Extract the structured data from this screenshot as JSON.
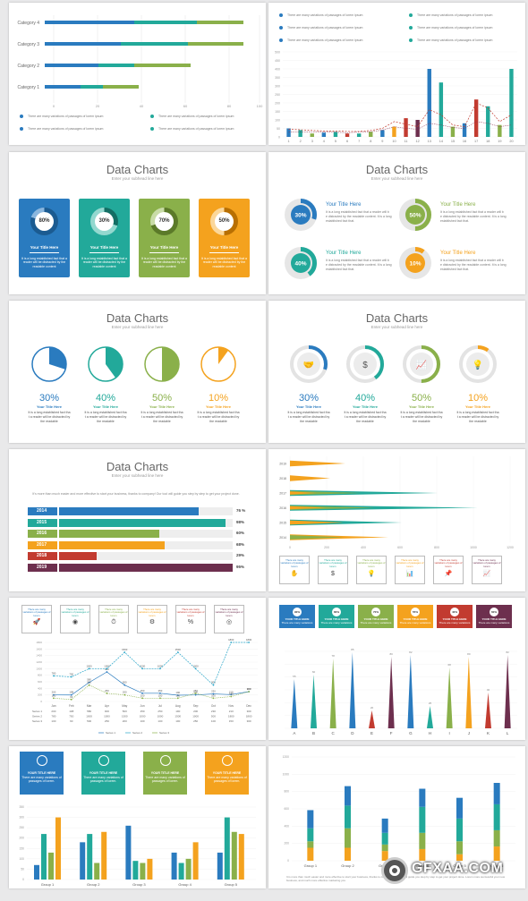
{
  "header_title": "Data Charts",
  "header_sub": "Enter your subhead line here",
  "slide1": {
    "categories": [
      "Category 4",
      "Category 3",
      "Category 2",
      "Category 1"
    ],
    "ticks": [
      "0",
      "20",
      "40",
      "60",
      "80",
      "100",
      "120"
    ],
    "legend": [
      "There are many variations of passages of lorem ipsum",
      "There are many variations of passages of lorem ipsum",
      "There are many variations of passages of lorem ipsum",
      "There are many variations of passages of lorem ipsum"
    ]
  },
  "slide2": {
    "legend": [
      "There are many variations of passages of lorem ipsum",
      "There are many variations of passages of lorem ipsum",
      "There are many variations of passages of lorem ipsum",
      "There are many variations of passages of lorem ipsum",
      "There are many variations of passages of lorem ipsum",
      "There are many variations of passages of lorem ipsum"
    ],
    "yticks": [
      "0",
      "50",
      "100",
      "150",
      "200",
      "250",
      "300",
      "350",
      "400",
      "450",
      "500"
    ],
    "xticks": [
      "1",
      "2",
      "3",
      "4",
      "5",
      "6",
      "7",
      "8",
      "9",
      "10",
      "11",
      "12",
      "13",
      "14",
      "15",
      "16",
      "17",
      "18",
      "19",
      "20"
    ]
  },
  "slide3": {
    "cards": [
      {
        "pct": "80%",
        "title": "Your Title Here",
        "body": "It is a long established fact that a reader will be distracted by the readable content"
      },
      {
        "pct": "30%",
        "title": "Your Title Here",
        "body": "It is a long established fact that a reader will be distracted by the readable content"
      },
      {
        "pct": "70%",
        "title": "Your Title Here",
        "body": "It is a long established fact that a reader will be distracted by the readable content"
      },
      {
        "pct": "50%",
        "title": "Your Title Here",
        "body": "It is a long established fact that a reader will be distracted by the readable content"
      }
    ]
  },
  "slide4": {
    "items": [
      {
        "pct": "30%",
        "title": "Your Title Here",
        "body": "It is a long established fact that a reader will be distracted by the readable content. It is a long established fact that."
      },
      {
        "pct": "50%",
        "title": "Your Title Here",
        "body": "It is a long established fact that a reader will be distracted by the readable content. It is a long established fact that."
      },
      {
        "pct": "40%",
        "title": "Your Title Here",
        "body": "It is a long established fact that a reader will be distracted by the readable content. It is a long established fact that."
      },
      {
        "pct": "10%",
        "title": "Your Title Here",
        "body": "It is a long established fact that a reader will be distracted by the readable content. It is a long established fact that."
      }
    ]
  },
  "slide5": {
    "items": [
      {
        "pct": "30%",
        "title": "Your Title Here",
        "body": "It is a long established fact that a reader will be distracted by the readable"
      },
      {
        "pct": "40%",
        "title": "Your Title Here",
        "body": "It is a long established fact that a reader will be distracted by the readable"
      },
      {
        "pct": "50%",
        "title": "Your Title Here",
        "body": "It is a long established fact that a reader will be distracted by the readable"
      },
      {
        "pct": "10%",
        "title": "Your Title Here",
        "body": "It is a long established fact that a reader will be distracted by the readable"
      }
    ]
  },
  "slide6": {
    "items": [
      {
        "pct": "30%",
        "title": "Your Title Here",
        "body": "It is a long established fact that a reader will be distracted by the readable"
      },
      {
        "pct": "40%",
        "title": "Your Title Here",
        "body": "It is a long established fact that a reader will be distracted by the readable"
      },
      {
        "pct": "50%",
        "title": "Your Title Here",
        "body": "It is a long established fact that a reader will be distracted by the readable"
      },
      {
        "pct": "10%",
        "title": "Your Title Here",
        "body": "It is a long established fact that a reader will be distracted by the readable"
      }
    ]
  },
  "slide7": {
    "intro": "It's more than much easier and more effective to start your business, thanks to company! Our tool will guide you step by step to get your project done.",
    "rows": [
      {
        "year": "2014",
        "pct": "76 %"
      },
      {
        "year": "2015",
        "pct": "98%"
      },
      {
        "year": "2016",
        "pct": "60%"
      },
      {
        "year": "2017",
        "pct": "68%"
      },
      {
        "year": "2018",
        "pct": "29%"
      },
      {
        "year": "2019",
        "pct": "95%"
      }
    ]
  },
  "slide8": {
    "years": [
      "2019",
      "2018",
      "2017",
      "2016",
      "2015",
      "2014"
    ],
    "xticks": [
      "0",
      "200",
      "400",
      "600",
      "800",
      "1000",
      "1200"
    ],
    "boxes": [
      "There are many variations of passages of lorem",
      "There are many variations of passages of lorem",
      "There are many variations of passages of lorem",
      "There are many variations of passages of lorem",
      "There are many variations of passages of lorem",
      "There are many variations of passages of lorem"
    ]
  },
  "slide9": {
    "boxes": [
      "There are many variations of passages of lorem",
      "There are many variations of passages of lorem",
      "There are many variations of passages of lorem",
      "There are many variations of passages of lorem",
      "There are many variations of passages of lorem",
      "There are many variations of passages of lorem"
    ],
    "months": [
      "Jan",
      "Feb",
      "Mar",
      "Apr",
      "May",
      "Jun",
      "Jul",
      "Aug",
      "Sep",
      "Oct",
      "Nov",
      "Dec"
    ],
    "rows": [
      {
        "name": "Series 1",
        "values": [
          "200",
          "198",
          "580",
          "900",
          "500",
          "250",
          "250",
          "190",
          "200",
          "230",
          "210",
          "300"
        ]
      },
      {
        "name": "Series 2",
        "values": [
          "780",
          "750",
          "1000",
          "1000",
          "1500",
          "1000",
          "1000",
          "1500",
          "1000",
          "500",
          "1800",
          "1800"
        ]
      },
      {
        "name": "Series 3",
        "values": [
          "100",
          "60",
          "500",
          "250",
          "200",
          "100",
          "100",
          "100",
          "250",
          "100",
          "150",
          "300"
        ]
      }
    ],
    "legend": [
      "Series 1",
      "Series 2",
      "Series 3"
    ]
  },
  "slide10": {
    "boxes": [
      {
        "pct": "90%",
        "title": "YOUR TITLE HERE",
        "body": "There are many variations"
      },
      {
        "pct": "80%",
        "title": "YOUR TITLE HERE",
        "body": "There are many variations"
      },
      {
        "pct": "70%",
        "title": "YOUR TITLE HERE",
        "body": "There are many variations"
      },
      {
        "pct": "55%",
        "title": "YOUR TITLE HERE",
        "body": "There are many variations"
      },
      {
        "pct": "40%",
        "title": "YOUR TITLE HERE",
        "body": "There are many variations"
      },
      {
        "pct": "60%",
        "title": "YOUR TITLE HERE",
        "body": "There are many variations"
      }
    ],
    "letters": [
      "A",
      "B",
      "C",
      "D",
      "E",
      "F",
      "G",
      "H",
      "I",
      "J",
      "K",
      "L"
    ]
  },
  "slide11": {
    "boxes": [
      {
        "title": "YOUR TITLE HERE",
        "body": "There are many variations of passages of lorem."
      },
      {
        "title": "YOUR TITLE HERE",
        "body": "There are many variations of passages of lorem."
      },
      {
        "title": "YOUR TITLE HERE",
        "body": "There are many variations of passages of lorem."
      },
      {
        "title": "YOUR TITLE HERE",
        "body": "There are many variations of passages of lorem."
      }
    ],
    "groups": [
      "Group 1",
      "Group 2",
      "Group 3",
      "Group 4",
      "Group 5"
    ],
    "yticks": [
      "0",
      "50",
      "100",
      "150",
      "200",
      "250",
      "300",
      "350"
    ]
  },
  "slide12": {
    "groups": [
      "Group 1",
      "Group 2",
      "Group 3",
      "Group 4",
      "Group 5",
      "Group 6"
    ],
    "yticks": [
      "0",
      "200",
      "400",
      "600",
      "800",
      "1000",
      "1200"
    ],
    "footer": "It is more than much easier and more effective to start your business, thanks to company! Our tool will guide you step by step to get your project done. Lorem more successful your new business, and much more effective marketing you."
  },
  "watermark": "GFXAA.COM",
  "colors": {
    "blue": "#2a7bbf",
    "teal": "#22a99a",
    "green": "#8ab04a",
    "orange": "#f4a21e",
    "red": "#c23b30",
    "purple": "#6d2f4e"
  }
}
